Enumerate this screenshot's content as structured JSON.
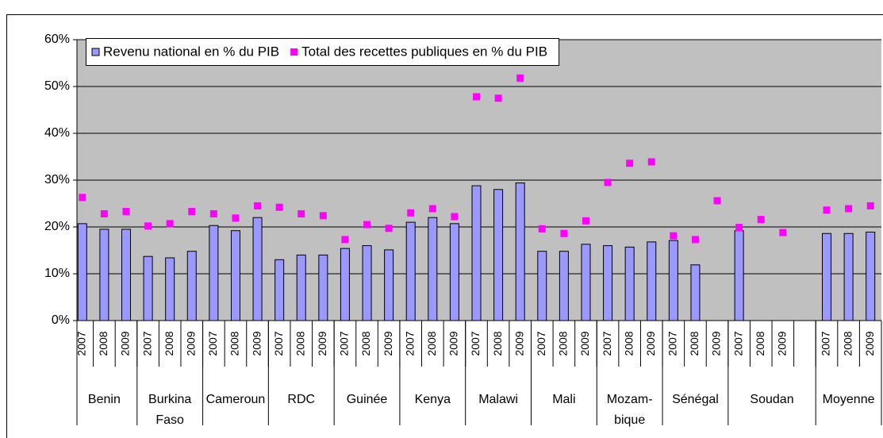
{
  "chart_data": {
    "type": "bar_marker",
    "groups": [
      {
        "name": "Benin",
        "categories": [
          "2007",
          "2008",
          "2009"
        ]
      },
      {
        "name": "Burkina\nFaso",
        "categories": [
          "2007",
          "2008",
          "2009"
        ]
      },
      {
        "name": "Cameroun",
        "categories": [
          "2007",
          "2008",
          "2009"
        ]
      },
      {
        "name": "RDC",
        "categories": [
          "2007",
          "2008",
          "2009"
        ]
      },
      {
        "name": "Guinée",
        "categories": [
          "2007",
          "2008",
          "2009"
        ]
      },
      {
        "name": "Kenya",
        "categories": [
          "2007",
          "2008",
          "2009"
        ]
      },
      {
        "name": "Malawi",
        "categories": [
          "2007",
          "2008",
          "2009"
        ]
      },
      {
        "name": "Mali",
        "categories": [
          "2007",
          "2008",
          "2009"
        ]
      },
      {
        "name": "Mozam-\nbique",
        "categories": [
          "2007",
          "2008",
          "2009"
        ]
      },
      {
        "name": "Sénégal",
        "categories": [
          "2007",
          "2008",
          "2009"
        ]
      },
      {
        "name": "Soudan",
        "categories": [
          "2007",
          "2008",
          "2009",
          null
        ]
      },
      {
        "name": "Moyenne",
        "categories": [
          "2007",
          "2008",
          "2009"
        ]
      }
    ],
    "series": [
      {
        "name": "Revenu national en % du PIB",
        "kind": "bar",
        "color": "#9999ff",
        "values": [
          20.7,
          19.5,
          19.5,
          13.7,
          13.4,
          14.8,
          20.3,
          19.2,
          22.0,
          13.0,
          14.0,
          14.0,
          15.4,
          16.0,
          15.1,
          21.0,
          22.0,
          20.7,
          28.8,
          28.0,
          29.4,
          14.8,
          14.8,
          16.3,
          16.0,
          15.7,
          16.8,
          17.1,
          11.9,
          null,
          19.2,
          null,
          null,
          null,
          18.6,
          18.6,
          18.9
        ]
      },
      {
        "name": "Total des recettes publiques en % du PIB",
        "kind": "marker",
        "color": "#ff00ff",
        "values": [
          26.3,
          22.8,
          23.3,
          20.2,
          20.7,
          23.3,
          22.8,
          21.9,
          24.5,
          24.2,
          22.8,
          22.4,
          17.3,
          20.5,
          19.7,
          23.0,
          23.9,
          22.2,
          47.8,
          47.5,
          51.8,
          19.6,
          18.6,
          21.3,
          29.5,
          33.6,
          33.9,
          18.1,
          17.3,
          25.6,
          19.9,
          21.6,
          18.8,
          null,
          23.6,
          23.9,
          24.5
        ]
      }
    ],
    "ylim": [
      0,
      60
    ],
    "yticks": [
      {
        "value": 0,
        "label": "0%"
      },
      {
        "value": 10,
        "label": "10%"
      },
      {
        "value": 20,
        "label": "20%"
      },
      {
        "value": 30,
        "label": "30%"
      },
      {
        "value": 40,
        "label": "40%"
      },
      {
        "value": 50,
        "label": "50%"
      },
      {
        "value": 60,
        "label": "60%"
      }
    ],
    "grid": true,
    "legend": "top-left",
    "plot_background": "#c0c0c0"
  }
}
